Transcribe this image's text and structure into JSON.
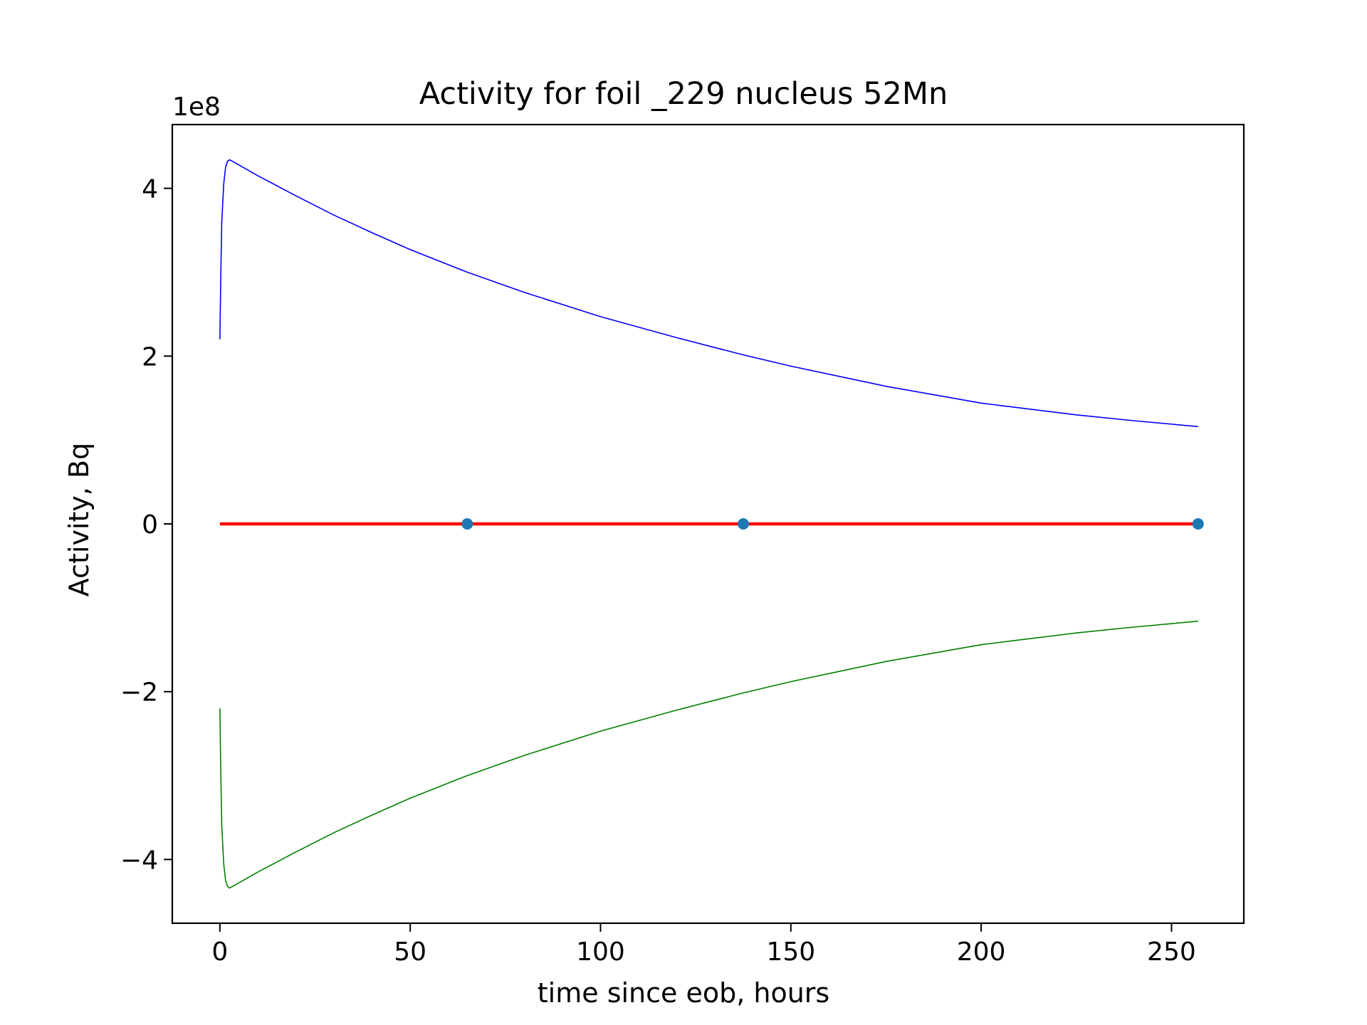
{
  "chart_data": {
    "type": "line",
    "title": "Activity for foil _229 nucleus 52Mn",
    "xlabel": "time since eob, hours",
    "ylabel": "Activity, Bq",
    "y_offset_label": "1e8",
    "xlim": [
      -12.5,
      269
    ],
    "ylim": [
      -4.76,
      4.76
    ],
    "x_ticks": [
      0,
      50,
      100,
      150,
      200,
      250
    ],
    "x_tick_labels": [
      "0",
      "50",
      "100",
      "150",
      "200",
      "250"
    ],
    "y_ticks": [
      -4,
      -2,
      0,
      2,
      4
    ],
    "y_tick_labels": [
      "−4",
      "−2",
      "0",
      "2",
      "4"
    ],
    "grid": false,
    "series": [
      {
        "color": "#0000ff",
        "style": "line",
        "points": [
          [
            0,
            2.2
          ],
          [
            0.25,
            3.0
          ],
          [
            0.5,
            3.6
          ],
          [
            1,
            4.05
          ],
          [
            1.5,
            4.25
          ],
          [
            2,
            4.32
          ],
          [
            2.5,
            4.34
          ],
          [
            3,
            4.33
          ],
          [
            10,
            4.15
          ],
          [
            20,
            3.91
          ],
          [
            30,
            3.68
          ],
          [
            40,
            3.47
          ],
          [
            50,
            3.27
          ],
          [
            65,
            3.0
          ],
          [
            80,
            2.76
          ],
          [
            100,
            2.47
          ],
          [
            120,
            2.22
          ],
          [
            137,
            2.02
          ],
          [
            150,
            1.88
          ],
          [
            175,
            1.64
          ],
          [
            200,
            1.44
          ],
          [
            225,
            1.3
          ],
          [
            240,
            1.23
          ],
          [
            257,
            1.16
          ]
        ]
      },
      {
        "color": "#008000",
        "style": "line",
        "points": [
          [
            0,
            -2.2
          ],
          [
            0.25,
            -3.0
          ],
          [
            0.5,
            -3.6
          ],
          [
            1,
            -4.05
          ],
          [
            1.5,
            -4.25
          ],
          [
            2,
            -4.32
          ],
          [
            2.5,
            -4.34
          ],
          [
            3,
            -4.33
          ],
          [
            10,
            -4.15
          ],
          [
            20,
            -3.91
          ],
          [
            30,
            -3.68
          ],
          [
            40,
            -3.47
          ],
          [
            50,
            -3.27
          ],
          [
            65,
            -3.0
          ],
          [
            80,
            -2.76
          ],
          [
            100,
            -2.47
          ],
          [
            120,
            -2.22
          ],
          [
            137,
            -2.02
          ],
          [
            150,
            -1.88
          ],
          [
            175,
            -1.64
          ],
          [
            200,
            -1.44
          ],
          [
            225,
            -1.3
          ],
          [
            240,
            -1.23
          ],
          [
            257,
            -1.16
          ]
        ]
      },
      {
        "color": "#ff0000",
        "style": "line-thick",
        "points": [
          [
            0,
            0
          ],
          [
            257,
            0
          ]
        ]
      },
      {
        "color": "#1f77b4",
        "style": "markers",
        "points": [
          [
            65,
            0
          ],
          [
            137.5,
            0
          ],
          [
            257,
            0
          ]
        ]
      }
    ]
  }
}
